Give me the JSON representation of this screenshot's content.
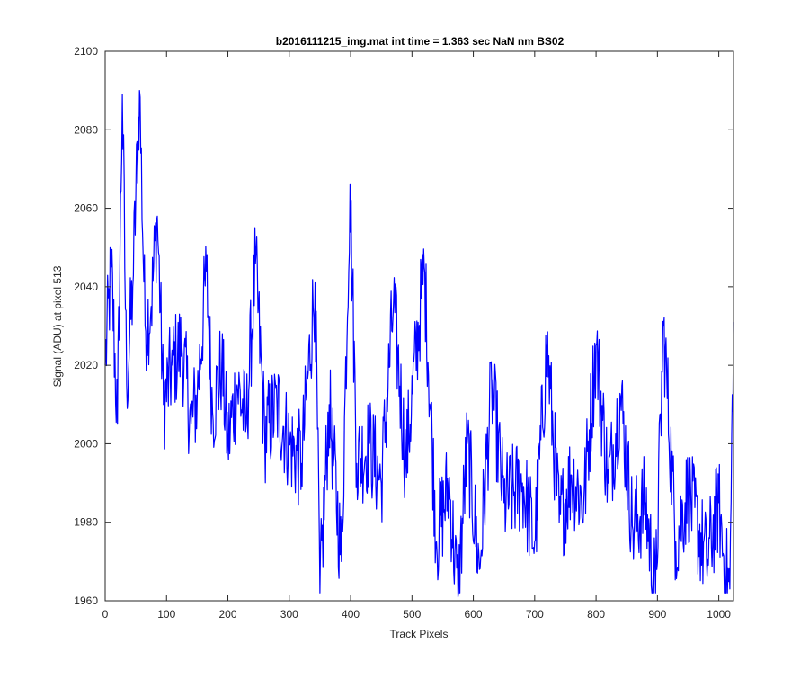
{
  "chart_data": {
    "type": "line",
    "title": "b2016111215_img.mat int time = 1.363 sec  NaN nm BS02",
    "xlabel": "Track Pixels",
    "ylabel": "Signal (ADU) at pixel 513",
    "xlim": [
      0,
      1024
    ],
    "ylim": [
      1960,
      2100
    ],
    "xticks": [
      0,
      100,
      200,
      300,
      400,
      500,
      600,
      700,
      800,
      900,
      1000
    ],
    "yticks": [
      1960,
      1980,
      2000,
      2020,
      2040,
      2060,
      2080,
      2100
    ],
    "grid": false,
    "legend": "none",
    "line_color": "#0000ff",
    "series": [
      {
        "x": [
          0,
          10,
          20,
          28,
          35,
          45,
          56,
          65,
          75,
          85,
          95,
          110,
          125,
          140,
          150,
          165,
          175,
          190,
          200,
          215,
          230,
          245,
          260,
          280,
          300,
          320,
          342,
          350,
          365,
          385,
          399,
          410,
          430,
          450,
          470,
          490,
          520,
          540,
          560,
          575,
          590,
          610,
          630,
          650,
          680,
          700,
          720,
          740,
          760,
          780,
          800,
          820,
          840,
          860,
          880,
          897,
          910,
          930,
          950,
          980,
          1000,
          1010,
          1018,
          1024
        ],
        "y": [
          2020,
          2045,
          2005,
          2089,
          2015,
          2040,
          2090,
          2030,
          2035,
          2058,
          2010,
          2020,
          2025,
          2005,
          2012,
          2044,
          2008,
          2020,
          2000,
          2015,
          2005,
          2046,
          2002,
          2010,
          2000,
          1995,
          2041,
          1962,
          2010,
          1970,
          2066,
          1995,
          2000,
          1990,
          2036,
          1995,
          2045,
          1975,
          1990,
          1961,
          2000,
          1968,
          2015,
          1985,
          1990,
          1975,
          2025,
          1980,
          1992,
          1985,
          2025,
          1990,
          2012,
          1978,
          1985,
          1962,
          2030,
          1975,
          1988,
          1970,
          1985,
          1968,
          1963,
          2031
        ]
      }
    ]
  }
}
